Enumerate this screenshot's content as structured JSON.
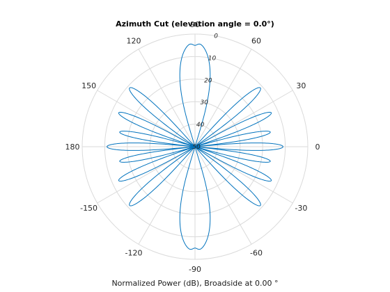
{
  "chart_data": {
    "type": "polar-line",
    "title": "Azimuth Cut (elevation angle = 0.0°)",
    "xlabel": "Normalized Power (dB), Broadside at 0.00 °",
    "angle_unit": "degrees",
    "angle_ticks": [
      "0",
      "30",
      "60",
      "90",
      "120",
      "150",
      "180",
      "-150",
      "-120",
      "-90",
      "-60",
      "-30"
    ],
    "angle_tick_values": [
      0,
      30,
      60,
      90,
      120,
      150,
      180,
      210,
      240,
      270,
      300,
      330
    ],
    "radial_ticks": [
      "0",
      "10",
      "20",
      "30",
      "40",
      "50"
    ],
    "radial_tick_values": [
      0,
      -10,
      -20,
      -30,
      -40,
      -50
    ],
    "rlim": [
      -50,
      0
    ],
    "grid": true,
    "series_color": "#0072bd",
    "grid_color": "#dadada",
    "series": [
      {
        "lobes": [
          {
            "center": 90,
            "half_width": 17,
            "peak_db": -3.5,
            "dip_db": -5.0
          },
          {
            "center": 270,
            "half_width": 17,
            "peak_db": -3.5,
            "dip_db": -5.0
          },
          {
            "center": 42,
            "half_width": 6,
            "peak_db": -11.0
          },
          {
            "center": 138,
            "half_width": 6,
            "peak_db": -11.0
          },
          {
            "center": 222,
            "half_width": 6,
            "peak_db": -11.0
          },
          {
            "center": 318,
            "half_width": 6,
            "peak_db": -11.0
          },
          {
            "center": 24,
            "half_width": 5,
            "peak_db": -13.0
          },
          {
            "center": 156,
            "half_width": 5,
            "peak_db": -13.0
          },
          {
            "center": 204,
            "half_width": 5,
            "peak_db": -13.0
          },
          {
            "center": 336,
            "half_width": 5,
            "peak_db": -13.0
          },
          {
            "center": 11,
            "half_width": 4.5,
            "peak_db": -16.0
          },
          {
            "center": 169,
            "half_width": 4.5,
            "peak_db": -16.0
          },
          {
            "center": 191,
            "half_width": 4.5,
            "peak_db": -16.0
          },
          {
            "center": 349,
            "half_width": 4.5,
            "peak_db": -16.0
          },
          {
            "center": 0,
            "half_width": 5,
            "peak_db": -11.0
          },
          {
            "center": 180,
            "half_width": 5,
            "peak_db": -11.0
          }
        ]
      }
    ]
  }
}
